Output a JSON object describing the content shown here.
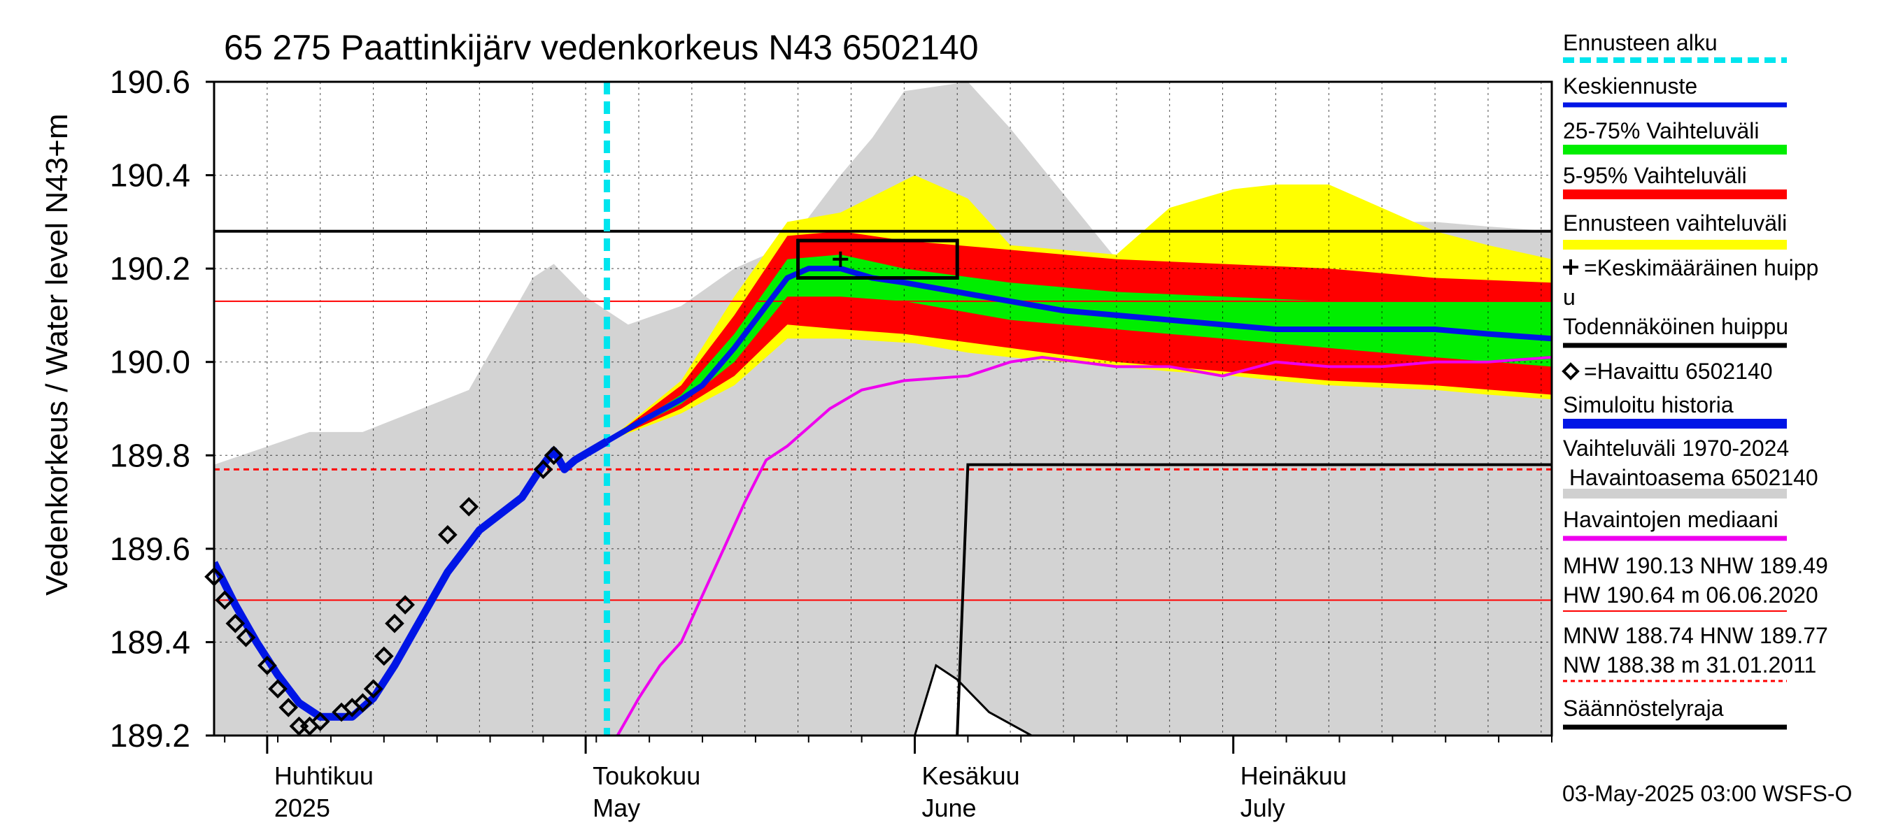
{
  "chart_data": {
    "type": "line",
    "title": "65 275 Paattinkijärv vedenkorkeus N43 6502140",
    "ylabel": "Vedenkorkeus / Water level",
    "yunit": "N43+m",
    "ylim": [
      189.2,
      190.6
    ],
    "yticks": [
      "190.6",
      "190.4",
      "190.2",
      "190.0",
      "189.8",
      "189.6",
      "189.4",
      "189.2"
    ],
    "xlim": [
      "2025-03-27",
      "2025-07-31"
    ],
    "months": [
      {
        "fi": "Huhtikuu",
        "en": "2025",
        "date": "2025-04-01"
      },
      {
        "fi": "Toukokuu",
        "en": "May",
        "date": "2025-05-01"
      },
      {
        "fi": "Kesäkuu",
        "en": "June",
        "date": "2025-06-01"
      },
      {
        "fi": "Heinäkuu",
        "en": "July",
        "date": "2025-07-01"
      }
    ],
    "forecast_start": "2025-05-03",
    "levels": {
      "MHW": 190.13,
      "NHW": 189.49,
      "HW": 190.64,
      "MNW": 188.74,
      "HNW": 189.77,
      "NW": 188.38,
      "regulation": 190.28
    },
    "observed": [
      {
        "x": "2025-03-27",
        "y": 189.54
      },
      {
        "x": "2025-03-28",
        "y": 189.49
      },
      {
        "x": "2025-03-29",
        "y": 189.44
      },
      {
        "x": "2025-03-30",
        "y": 189.41
      },
      {
        "x": "2025-04-01",
        "y": 189.35
      },
      {
        "x": "2025-04-02",
        "y": 189.3
      },
      {
        "x": "2025-04-03",
        "y": 189.26
      },
      {
        "x": "2025-04-04",
        "y": 189.22
      },
      {
        "x": "2025-04-05",
        "y": 189.22
      },
      {
        "x": "2025-04-06",
        "y": 189.23
      },
      {
        "x": "2025-04-08",
        "y": 189.25
      },
      {
        "x": "2025-04-09",
        "y": 189.26
      },
      {
        "x": "2025-04-10",
        "y": 189.27
      },
      {
        "x": "2025-04-11",
        "y": 189.3
      },
      {
        "x": "2025-04-12",
        "y": 189.37
      },
      {
        "x": "2025-04-13",
        "y": 189.44
      },
      {
        "x": "2025-04-14",
        "y": 189.48
      },
      {
        "x": "2025-04-18",
        "y": 189.63
      },
      {
        "x": "2025-04-20",
        "y": 189.69
      },
      {
        "x": "2025-04-27",
        "y": 189.77
      },
      {
        "x": "2025-04-28",
        "y": 189.8
      }
    ],
    "simulated_history": [
      {
        "x": "2025-03-27",
        "y": 189.57
      },
      {
        "x": "2025-03-29",
        "y": 189.48
      },
      {
        "x": "2025-03-31",
        "y": 189.4
      },
      {
        "x": "2025-04-02",
        "y": 189.33
      },
      {
        "x": "2025-04-04",
        "y": 189.27
      },
      {
        "x": "2025-04-06",
        "y": 189.24
      },
      {
        "x": "2025-04-09",
        "y": 189.24
      },
      {
        "x": "2025-04-11",
        "y": 189.28
      },
      {
        "x": "2025-04-13",
        "y": 189.35
      },
      {
        "x": "2025-04-15",
        "y": 189.43
      },
      {
        "x": "2025-04-18",
        "y": 189.55
      },
      {
        "x": "2025-04-21",
        "y": 189.64
      },
      {
        "x": "2025-04-25",
        "y": 189.71
      },
      {
        "x": "2025-04-27",
        "y": 189.78
      },
      {
        "x": "2025-04-28",
        "y": 189.81
      },
      {
        "x": "2025-04-29",
        "y": 189.77
      },
      {
        "x": "2025-04-30",
        "y": 189.79
      },
      {
        "x": "2025-05-03",
        "y": 189.83
      }
    ],
    "mean_forecast": [
      {
        "x": "2025-05-03",
        "y": 189.83
      },
      {
        "x": "2025-05-06",
        "y": 189.87
      },
      {
        "x": "2025-05-10",
        "y": 189.92
      },
      {
        "x": "2025-05-12",
        "y": 189.95
      },
      {
        "x": "2025-05-15",
        "y": 190.03
      },
      {
        "x": "2025-05-18",
        "y": 190.12
      },
      {
        "x": "2025-05-20",
        "y": 190.18
      },
      {
        "x": "2025-05-22",
        "y": 190.2
      },
      {
        "x": "2025-05-25",
        "y": 190.2
      },
      {
        "x": "2025-05-28",
        "y": 190.18
      },
      {
        "x": "2025-05-31",
        "y": 190.17
      },
      {
        "x": "2025-06-05",
        "y": 190.15
      },
      {
        "x": "2025-06-10",
        "y": 190.13
      },
      {
        "x": "2025-06-15",
        "y": 190.11
      },
      {
        "x": "2025-06-20",
        "y": 190.1
      },
      {
        "x": "2025-06-25",
        "y": 190.09
      },
      {
        "x": "2025-06-30",
        "y": 190.08
      },
      {
        "x": "2025-07-05",
        "y": 190.07
      },
      {
        "x": "2025-07-10",
        "y": 190.07
      },
      {
        "x": "2025-07-15",
        "y": 190.07
      },
      {
        "x": "2025-07-20",
        "y": 190.07
      },
      {
        "x": "2025-07-25",
        "y": 190.06
      },
      {
        "x": "2025-07-31",
        "y": 190.05
      }
    ],
    "band_25_75": {
      "x": [
        "2025-05-03",
        "2025-05-10",
        "2025-05-15",
        "2025-05-20",
        "2025-05-25",
        "2025-05-31",
        "2025-06-10",
        "2025-06-20",
        "2025-06-30",
        "2025-07-10",
        "2025-07-20",
        "2025-07-31"
      ],
      "upper": [
        189.83,
        189.93,
        190.06,
        190.22,
        190.23,
        190.2,
        190.17,
        190.15,
        190.14,
        190.13,
        190.13,
        190.13
      ],
      "lower": [
        189.83,
        189.91,
        190.0,
        190.14,
        190.14,
        190.13,
        190.09,
        190.07,
        190.05,
        190.03,
        190.01,
        189.99
      ]
    },
    "band_5_95": {
      "x": [
        "2025-05-03",
        "2025-05-10",
        "2025-05-15",
        "2025-05-20",
        "2025-05-25",
        "2025-05-31",
        "2025-06-10",
        "2025-06-20",
        "2025-06-30",
        "2025-07-10",
        "2025-07-20",
        "2025-07-31"
      ],
      "upper": [
        189.83,
        189.95,
        190.1,
        190.27,
        190.28,
        190.26,
        190.24,
        190.22,
        190.21,
        190.2,
        190.18,
        190.17
      ],
      "lower": [
        189.83,
        189.9,
        189.97,
        190.08,
        190.07,
        190.06,
        190.03,
        190.0,
        189.98,
        189.96,
        189.95,
        189.93
      ]
    },
    "band_forecast_range": {
      "x": [
        "2025-05-03",
        "2025-05-10",
        "2025-05-15",
        "2025-05-20",
        "2025-05-25",
        "2025-06-01",
        "2025-06-06",
        "2025-06-10",
        "2025-06-20",
        "2025-06-25",
        "2025-07-01",
        "2025-07-05",
        "2025-07-10",
        "2025-07-20",
        "2025-07-25",
        "2025-07-31"
      ],
      "upper": [
        189.83,
        189.96,
        190.14,
        190.3,
        190.32,
        190.4,
        190.35,
        190.25,
        190.23,
        190.33,
        190.37,
        190.38,
        190.38,
        190.28,
        190.25,
        190.22
      ],
      "lower": [
        189.83,
        189.89,
        189.95,
        190.05,
        190.05,
        190.04,
        190.02,
        190.01,
        189.99,
        189.98,
        189.97,
        189.96,
        189.95,
        189.94,
        189.93,
        189.92
      ]
    },
    "history_range": {
      "x": [
        "2025-03-27",
        "2025-04-05",
        "2025-04-10",
        "2025-04-20",
        "2025-04-26",
        "2025-04-28",
        "2025-05-01",
        "2025-05-05",
        "2025-05-10",
        "2025-05-15",
        "2025-05-20",
        "2025-05-25",
        "2025-05-28",
        "2025-05-31",
        "2025-06-06",
        "2025-06-10",
        "2025-06-20",
        "2025-06-25",
        "2025-07-01",
        "2025-07-05",
        "2025-07-10",
        "2025-07-15",
        "2025-07-20",
        "2025-07-25",
        "2025-07-31"
      ],
      "upper": [
        189.78,
        189.85,
        189.85,
        189.94,
        190.18,
        190.21,
        190.14,
        190.08,
        190.12,
        190.2,
        190.25,
        190.4,
        190.48,
        190.58,
        190.6,
        190.5,
        190.22,
        190.28,
        190.2,
        190.24,
        190.28,
        190.3,
        190.3,
        190.29,
        190.28
      ],
      "lower": [
        189.2,
        189.2,
        189.2,
        189.2,
        189.2,
        189.2,
        189.2,
        189.2,
        189.2,
        189.2,
        189.2,
        189.2,
        189.2,
        189.2,
        189.2,
        189.2,
        189.2,
        189.2,
        189.2,
        189.2,
        189.2,
        189.2,
        189.2,
        189.2,
        189.2
      ]
    },
    "observed_median": [
      {
        "x": "2025-05-04",
        "y": 189.2
      },
      {
        "x": "2025-05-06",
        "y": 189.28
      },
      {
        "x": "2025-05-08",
        "y": 189.35
      },
      {
        "x": "2025-05-10",
        "y": 189.4
      },
      {
        "x": "2025-05-12",
        "y": 189.5
      },
      {
        "x": "2025-05-14",
        "y": 189.6
      },
      {
        "x": "2025-05-16",
        "y": 189.7
      },
      {
        "x": "2025-05-18",
        "y": 189.79
      },
      {
        "x": "2025-05-20",
        "y": 189.82
      },
      {
        "x": "2025-05-22",
        "y": 189.86
      },
      {
        "x": "2025-05-24",
        "y": 189.9
      },
      {
        "x": "2025-05-27",
        "y": 189.94
      },
      {
        "x": "2025-05-31",
        "y": 189.96
      },
      {
        "x": "2025-06-06",
        "y": 189.97
      },
      {
        "x": "2025-06-10",
        "y": 190.0
      },
      {
        "x": "2025-06-13",
        "y": 190.01
      },
      {
        "x": "2025-06-20",
        "y": 189.99
      },
      {
        "x": "2025-06-25",
        "y": 189.99
      },
      {
        "x": "2025-06-30",
        "y": 189.97
      },
      {
        "x": "2025-07-05",
        "y": 190.0
      },
      {
        "x": "2025-07-10",
        "y": 189.99
      },
      {
        "x": "2025-07-15",
        "y": 189.99
      },
      {
        "x": "2025-07-20",
        "y": 190.0
      },
      {
        "x": "2025-07-25",
        "y": 190.0
      },
      {
        "x": "2025-07-31",
        "y": 190.01
      }
    ],
    "mean_peak": {
      "x": "2025-05-25",
      "y": 190.22
    },
    "probable_peak_box": {
      "x0": "2025-05-21",
      "x1": "2025-06-05",
      "y0": 190.18,
      "y1": 190.26
    },
    "peak_distribution": {
      "x": [
        "2025-05-20",
        "2025-06-01",
        "2025-06-03",
        "2025-06-05",
        "2025-06-08",
        "2025-06-12",
        "2025-06-15",
        "2025-07-31"
      ],
      "y": [
        189.2,
        189.2,
        189.35,
        189.32,
        189.25,
        189.2,
        189.2,
        189.2
      ]
    },
    "regulation_limit": {
      "x": [
        "2025-06-05",
        "2025-06-06",
        "2025-07-31"
      ],
      "y": [
        189.2,
        189.78,
        189.78
      ]
    },
    "legend": [
      {
        "label": "Ennusteen alku",
        "color": "#00e5ee",
        "style": "dash"
      },
      {
        "label": "Keskiennuste",
        "color": "#0015e6",
        "style": "line"
      },
      {
        "label": "25-75% Vaihteluväli",
        "color": "#00ee00",
        "style": "thick"
      },
      {
        "label": "5-95% Vaihteluväli",
        "color": "#ff0000",
        "style": "thick"
      },
      {
        "label": "Ennusteen vaihteluväli",
        "color": "#ffff00",
        "style": "thick"
      },
      {
        "label": "=Keskimääräinen huippu",
        "color": "#000000",
        "style": "plus"
      },
      {
        "label": "Todennäköinen huippu",
        "color": "#000000",
        "style": "line"
      },
      {
        "label": "=Havaittu 6502140",
        "color": "#000000",
        "style": "diamond"
      },
      {
        "label": "Simuloitu historia",
        "color": "#0015e6",
        "style": "thick"
      },
      {
        "label": "Vaihteluväli 1970-2024 Havaintoasema 6502140",
        "color": "#d0d0d0",
        "style": "thick"
      },
      {
        "label": "Havaintojen mediaani",
        "color": "#ee00ee",
        "style": "line"
      },
      {
        "label": "MHW 190.13 NHW 189.49 HW 190.64 m 06.06.2020",
        "color": "#ff0000",
        "style": "thin"
      },
      {
        "label": "MNW 188.74 HNW 189.77 NW 188.38 m 31.01.2011",
        "color": "#ff0000",
        "style": "dotted"
      },
      {
        "label": "Säännöstelyraja",
        "color": "#000000",
        "style": "line"
      }
    ],
    "footer": "03-May-2025 03:00 WSFS-O"
  }
}
